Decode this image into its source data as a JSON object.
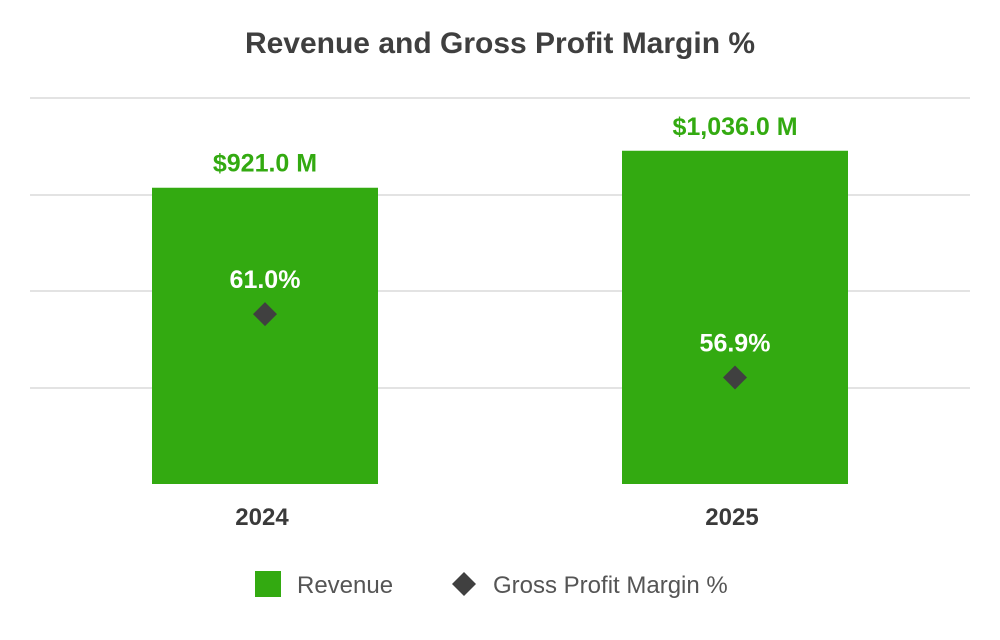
{
  "chart_data": {
    "type": "bar",
    "title": "Revenue and Gross Profit Margin %",
    "categories": [
      "2024",
      "2025"
    ],
    "series": [
      {
        "name": "Revenue",
        "kind": "bar",
        "values": [
          921.0,
          1036.0
        ],
        "labels": [
          "$921.0 M",
          "$1,036.0 M"
        ],
        "color": "#33aa11",
        "label_color": "#33aa11"
      },
      {
        "name": "Gross Profit Margin %",
        "kind": "scatter",
        "marker": "diamond",
        "values": [
          61.0,
          56.9
        ],
        "labels": [
          "61.0%",
          "56.9%"
        ],
        "color": "#404040"
      }
    ],
    "ylim": [
      0,
      1200
    ],
    "margin_ylim": [
      50,
      75
    ],
    "grid": true,
    "legend": "bottom-center"
  }
}
